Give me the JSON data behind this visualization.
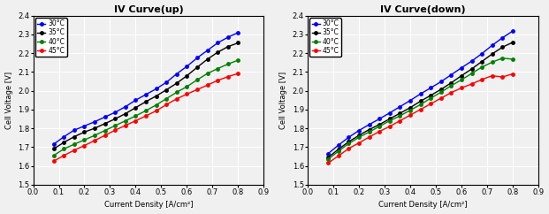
{
  "title_left": "IV Curve(up)",
  "title_right": "IV Curve(down)",
  "xlabel": "Current Density [A/cm²]",
  "ylabel": "Cell Voltage [V]",
  "xlim": [
    0.0,
    0.9
  ],
  "ylim": [
    1.5,
    2.4
  ],
  "xticks": [
    0.0,
    0.1,
    0.2,
    0.3,
    0.4,
    0.5,
    0.6,
    0.7,
    0.8,
    0.9
  ],
  "yticks": [
    1.5,
    1.6,
    1.7,
    1.8,
    1.9,
    2.0,
    2.1,
    2.2,
    2.3,
    2.4
  ],
  "colors": [
    "blue",
    "black",
    "green",
    "red"
  ],
  "labels": [
    "30°C",
    "35°C",
    "40°C",
    "45°C"
  ],
  "x_data": [
    0.08,
    0.12,
    0.16,
    0.2,
    0.24,
    0.28,
    0.32,
    0.36,
    0.4,
    0.44,
    0.48,
    0.52,
    0.56,
    0.6,
    0.64,
    0.68,
    0.72,
    0.76,
    0.8
  ],
  "up_30": [
    1.715,
    1.755,
    1.79,
    1.812,
    1.835,
    1.86,
    1.885,
    1.915,
    1.95,
    1.98,
    2.01,
    2.045,
    2.09,
    2.13,
    2.175,
    2.215,
    2.255,
    2.285,
    2.31
  ],
  "up_35": [
    1.69,
    1.725,
    1.755,
    1.78,
    1.8,
    1.825,
    1.85,
    1.878,
    1.91,
    1.942,
    1.972,
    2.005,
    2.04,
    2.08,
    2.125,
    2.168,
    2.205,
    2.235,
    2.255
  ],
  "up_40": [
    1.655,
    1.69,
    1.715,
    1.738,
    1.762,
    1.788,
    1.814,
    1.84,
    1.866,
    1.894,
    1.924,
    1.958,
    1.992,
    2.022,
    2.058,
    2.092,
    2.118,
    2.142,
    2.163
  ],
  "up_45": [
    1.625,
    1.655,
    1.683,
    1.708,
    1.735,
    1.762,
    1.79,
    1.815,
    1.84,
    1.866,
    1.893,
    1.926,
    1.957,
    1.982,
    2.006,
    2.03,
    2.055,
    2.075,
    2.092
  ],
  "down_30": [
    1.665,
    1.71,
    1.752,
    1.788,
    1.82,
    1.85,
    1.882,
    1.915,
    1.948,
    1.983,
    2.015,
    2.048,
    2.085,
    2.122,
    2.158,
    2.198,
    2.242,
    2.282,
    2.318
  ],
  "down_35": [
    1.645,
    1.688,
    1.728,
    1.762,
    1.793,
    1.82,
    1.85,
    1.88,
    1.91,
    1.944,
    1.975,
    2.007,
    2.042,
    2.08,
    2.116,
    2.156,
    2.196,
    2.232,
    2.258
  ],
  "down_40": [
    1.635,
    1.678,
    1.718,
    1.752,
    1.78,
    1.81,
    1.84,
    1.866,
    1.896,
    1.926,
    1.96,
    1.992,
    2.027,
    2.058,
    2.092,
    2.126,
    2.152,
    2.174,
    2.168
  ],
  "down_45": [
    1.615,
    1.653,
    1.692,
    1.722,
    1.753,
    1.783,
    1.81,
    1.84,
    1.87,
    1.9,
    1.93,
    1.96,
    1.99,
    2.015,
    2.036,
    2.06,
    2.08,
    2.073,
    2.09
  ],
  "bg_color": "#f0f0f0",
  "grid_color": "#ffffff",
  "title_fontsize": 8,
  "label_fontsize": 6,
  "tick_fontsize": 6,
  "legend_fontsize": 5.5,
  "linewidth": 1.0,
  "markersize": 2.5
}
